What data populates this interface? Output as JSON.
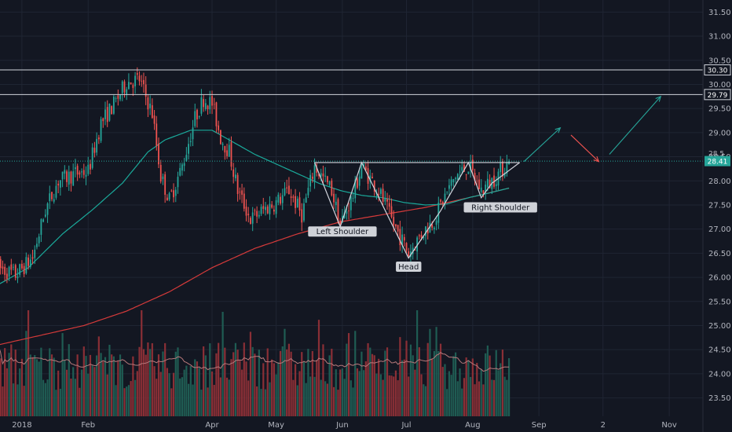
{
  "chart_data": {
    "type": "candlestick",
    "y_axis": {
      "range": [
        23.2,
        31.75
      ],
      "ticks": [
        "31.50",
        "31.00",
        "30.50",
        "30.00",
        "29.50",
        "29.00",
        "28.50",
        "28.00",
        "27.50",
        "27.00",
        "26.50",
        "26.00",
        "25.50",
        "25.00",
        "24.50",
        "24.00",
        "23.50"
      ]
    },
    "x_axis": {
      "labels": [
        {
          "label": "2018",
          "day": 11
        },
        {
          "label": "Feb",
          "day": 42
        },
        {
          "label": "Apr",
          "day": 100
        },
        {
          "label": "May",
          "day": 130
        },
        {
          "label": "Jun",
          "day": 161
        },
        {
          "label": "Jul",
          "day": 191
        },
        {
          "label": "Aug",
          "day": 222
        },
        {
          "label": "Sep",
          "day": 253
        },
        {
          "label": "2",
          "day": 283
        },
        {
          "label": "Nov",
          "day": 314
        }
      ]
    },
    "last_day": 239,
    "horizontal_levels": [
      {
        "label": "30.30",
        "value": 30.3
      },
      {
        "label": "29.79",
        "value": 29.79
      }
    ],
    "current_price": {
      "label": "28.41",
      "value": 28.41
    },
    "hidden_price_label": "28.5",
    "neckline": {
      "value": 28.38,
      "from_day": 148,
      "to_day": 244
    },
    "pattern": [
      [
        148,
        28.38
      ],
      [
        160,
        27.05
      ],
      [
        170,
        28.38
      ],
      [
        192,
        26.4
      ],
      [
        207,
        27.38
      ],
      [
        220,
        28.38
      ],
      [
        226,
        27.65
      ],
      [
        231,
        27.95
      ],
      [
        244,
        28.38
      ]
    ],
    "annotations": [
      {
        "text": "Left Shoulder",
        "day": 161,
        "price": 26.95
      },
      {
        "text": "Head",
        "day": 192,
        "price": 26.22
      },
      {
        "text": "Right Shoulder",
        "day": 235,
        "price": 27.45
      }
    ],
    "arrows": [
      {
        "color": "#26a69a",
        "from": [
          246,
          28.4
        ],
        "to": [
          263,
          29.1
        ]
      },
      {
        "color": "#ef5350",
        "from": [
          268,
          28.95
        ],
        "to": [
          281,
          28.4
        ]
      },
      {
        "color": "#26a69a",
        "from": [
          286,
          28.55
        ],
        "to": [
          310,
          29.75
        ]
      }
    ],
    "price_path": [
      [
        0,
        26.2
      ],
      [
        8,
        26.05
      ],
      [
        16,
        26.4
      ],
      [
        22,
        27.4
      ],
      [
        28,
        28.0
      ],
      [
        36,
        28.15
      ],
      [
        42,
        28.2
      ],
      [
        48,
        29.2
      ],
      [
        55,
        29.65
      ],
      [
        60,
        30.05
      ],
      [
        66,
        30.1
      ],
      [
        72,
        29.4
      ],
      [
        76,
        28.1
      ],
      [
        80,
        27.6
      ],
      [
        86,
        28.3
      ],
      [
        92,
        29.3
      ],
      [
        96,
        29.7
      ],
      [
        100,
        29.6
      ],
      [
        104,
        28.9
      ],
      [
        108,
        28.6
      ],
      [
        112,
        27.8
      ],
      [
        118,
        27.2
      ],
      [
        124,
        27.4
      ],
      [
        130,
        27.55
      ],
      [
        136,
        27.8
      ],
      [
        142,
        27.3
      ],
      [
        148,
        28.3
      ],
      [
        156,
        27.8
      ],
      [
        160,
        27.1
      ],
      [
        166,
        27.7
      ],
      [
        170,
        28.3
      ],
      [
        178,
        27.8
      ],
      [
        185,
        27.1
      ],
      [
        192,
        26.5
      ],
      [
        198,
        26.9
      ],
      [
        204,
        27.2
      ],
      [
        208,
        27.6
      ],
      [
        214,
        28.1
      ],
      [
        220,
        28.3
      ],
      [
        226,
        27.8
      ],
      [
        231,
        28.0
      ],
      [
        239,
        28.4
      ]
    ],
    "ma_fast": [
      [
        0,
        25.85
      ],
      [
        14,
        26.2
      ],
      [
        30,
        26.9
      ],
      [
        44,
        27.4
      ],
      [
        58,
        27.95
      ],
      [
        70,
        28.6
      ],
      [
        78,
        28.85
      ],
      [
        90,
        29.05
      ],
      [
        100,
        29.05
      ],
      [
        110,
        28.8
      ],
      [
        120,
        28.55
      ],
      [
        130,
        28.35
      ],
      [
        140,
        28.15
      ],
      [
        150,
        27.95
      ],
      [
        160,
        27.8
      ],
      [
        170,
        27.7
      ],
      [
        180,
        27.65
      ],
      [
        190,
        27.55
      ],
      [
        200,
        27.5
      ],
      [
        210,
        27.52
      ],
      [
        220,
        27.65
      ],
      [
        230,
        27.75
      ],
      [
        239,
        27.85
      ]
    ],
    "ma_slow": [
      [
        0,
        24.6
      ],
      [
        20,
        24.8
      ],
      [
        40,
        25.0
      ],
      [
        60,
        25.3
      ],
      [
        80,
        25.7
      ],
      [
        100,
        26.2
      ],
      [
        120,
        26.6
      ],
      [
        140,
        26.9
      ],
      [
        160,
        27.15
      ],
      [
        180,
        27.3
      ],
      [
        200,
        27.45
      ],
      [
        220,
        27.65
      ],
      [
        239,
        27.85
      ]
    ]
  },
  "colors": {
    "background": "#131722",
    "grid": "#1f2533",
    "up": "#26a69a",
    "down": "#ef5350",
    "up_volume": "#1f5c53",
    "down_volume": "#8a2f36",
    "ma_fast": "#1aa99a",
    "ma_slow": "#d53a3a",
    "volume_ma": "#b8797b",
    "text": "#b2b5be",
    "level_line": "#d1d4dc",
    "pattern_line": "#d1d4dc",
    "annotation_bg": "#cfd2d8"
  }
}
